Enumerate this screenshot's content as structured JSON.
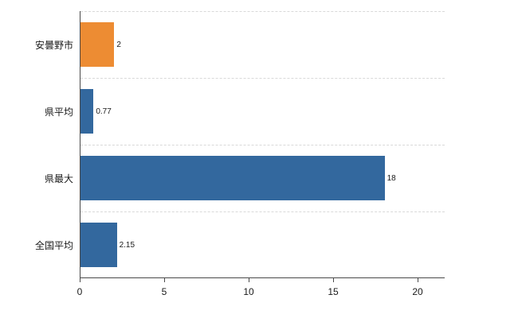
{
  "chart_data": {
    "type": "bar",
    "orientation": "horizontal",
    "title": "",
    "xlabel": "",
    "ylabel": "",
    "categories": [
      "安曇野市",
      "県平均",
      "県最大",
      "全国平均"
    ],
    "values": [
      2,
      0.77,
      18,
      2.15
    ],
    "value_labels": [
      "2",
      "0.77",
      "18",
      "2.15"
    ],
    "bar_colors": [
      "#ed8c33",
      "#33689e",
      "#33689e",
      "#33689e"
    ],
    "xlim": [
      0,
      21.6
    ],
    "x_ticks": [
      "0",
      "5",
      "10",
      "15",
      "20"
    ],
    "x_tick_values": [
      0,
      5,
      10,
      15,
      20
    ],
    "grid": "horizontal-dashed",
    "legend": "none",
    "colors": {
      "axis": "#4a4a4a",
      "gridline": "#d9d9d9",
      "background": "#ffffff",
      "highlight_bar": "#ed8c33",
      "default_bar": "#33689e"
    }
  }
}
